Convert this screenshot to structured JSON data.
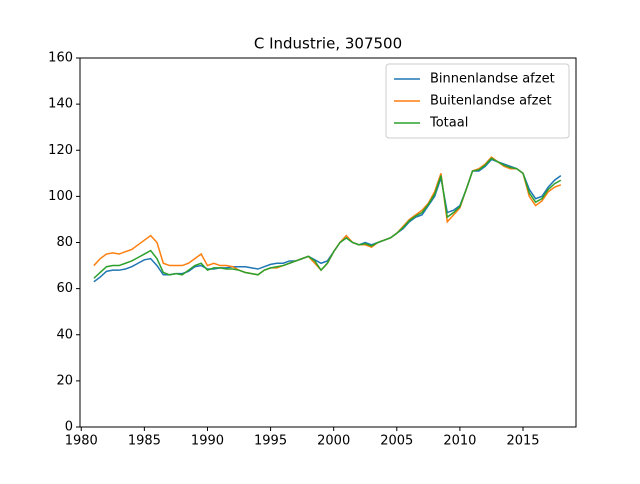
{
  "chart_data": {
    "type": "line",
    "title": "C Industrie, 307500",
    "x": [
      1981,
      1981.5,
      1982,
      1982.5,
      1983,
      1983.5,
      1984,
      1984.5,
      1985,
      1985.5,
      1986,
      1986.5,
      1987,
      1987.5,
      1988,
      1988.5,
      1989,
      1989.5,
      1990,
      1990.5,
      1991,
      1991.5,
      1992,
      1992.5,
      1993,
      1993.5,
      1994,
      1994.5,
      1995,
      1995.5,
      1996,
      1996.5,
      1997,
      1997.5,
      1998,
      1998.5,
      1999,
      1999.5,
      2000,
      2000.5,
      2001,
      2001.5,
      2002,
      2002.5,
      2003,
      2003.5,
      2004,
      2004.5,
      2005,
      2005.5,
      2006,
      2006.5,
      2007,
      2007.5,
      2008,
      2008.5,
      2009,
      2009.5,
      2010,
      2010.5,
      2011,
      2011.5,
      2012,
      2012.5,
      2013,
      2013.5,
      2014,
      2014.5,
      2015,
      2015.5,
      2016,
      2016.5,
      2017,
      2017.5,
      2018
    ],
    "series": [
      {
        "name": "Binnenlandse afzet",
        "color": "#1f77b4",
        "values": [
          63,
          65,
          67.5,
          68,
          68,
          68.5,
          69.5,
          71,
          72.5,
          73,
          70,
          66,
          66,
          66.5,
          66.5,
          67.5,
          69.5,
          70,
          68.5,
          68.5,
          69,
          69,
          69.5,
          69.5,
          69.5,
          69,
          68.5,
          69.5,
          70.5,
          71,
          71,
          72,
          72,
          73,
          74,
          72.5,
          71,
          72,
          76,
          80,
          82,
          80,
          79,
          80,
          79,
          80,
          81,
          82,
          84,
          86,
          89,
          91,
          92,
          96,
          100,
          108,
          93,
          94,
          96,
          103,
          111,
          111,
          113,
          116,
          115,
          114,
          113,
          112,
          110,
          103,
          99,
          100,
          104,
          107,
          109
        ]
      },
      {
        "name": "Buitenlandse afzet",
        "color": "#ff7f0e",
        "values": [
          70,
          73,
          75,
          75.5,
          75,
          76,
          77,
          79,
          81,
          83,
          80,
          71,
          70,
          70,
          70,
          71,
          73,
          75,
          70,
          71,
          70,
          70,
          69.5,
          68,
          67,
          66.5,
          66,
          68,
          69,
          69,
          70,
          71,
          72,
          73,
          74,
          71,
          68,
          71,
          76,
          80,
          83,
          80,
          79,
          79,
          78,
          80,
          81,
          82,
          84,
          87,
          90,
          92,
          94,
          97,
          102,
          110,
          89,
          92,
          95,
          103,
          111,
          112,
          114,
          117,
          115,
          113,
          112,
          112,
          110,
          100,
          96,
          98,
          102,
          104,
          105
        ]
      },
      {
        "name": "Totaal",
        "color": "#2ca02c",
        "values": [
          64.5,
          67,
          69.5,
          70,
          70,
          71,
          72,
          73.5,
          75,
          76.5,
          73,
          67,
          66,
          66.5,
          66,
          68,
          70,
          71,
          68,
          69,
          69,
          68.5,
          68.5,
          68,
          67,
          66.5,
          66,
          68,
          69,
          69.5,
          70,
          71,
          72,
          73,
          74,
          72,
          68,
          71,
          76,
          80,
          82,
          80,
          79,
          79.5,
          78.5,
          80,
          81,
          82,
          84,
          86.5,
          89.5,
          91.5,
          93,
          96.5,
          101,
          109,
          91,
          93,
          95.5,
          103,
          111,
          111.5,
          113.5,
          116.5,
          115,
          113.5,
          112.5,
          112,
          110,
          101.5,
          97.5,
          99,
          103,
          105.5,
          107
        ]
      }
    ],
    "xlim": [
      1979.9,
      2019.2
    ],
    "xticks": [
      1980,
      1985,
      1990,
      1995,
      2000,
      2005,
      2010,
      2015
    ],
    "ylim": [
      0,
      160
    ],
    "yticks": [
      0,
      20,
      40,
      60,
      80,
      100,
      120,
      140,
      160
    ],
    "grid": false,
    "legend": "upper right"
  }
}
